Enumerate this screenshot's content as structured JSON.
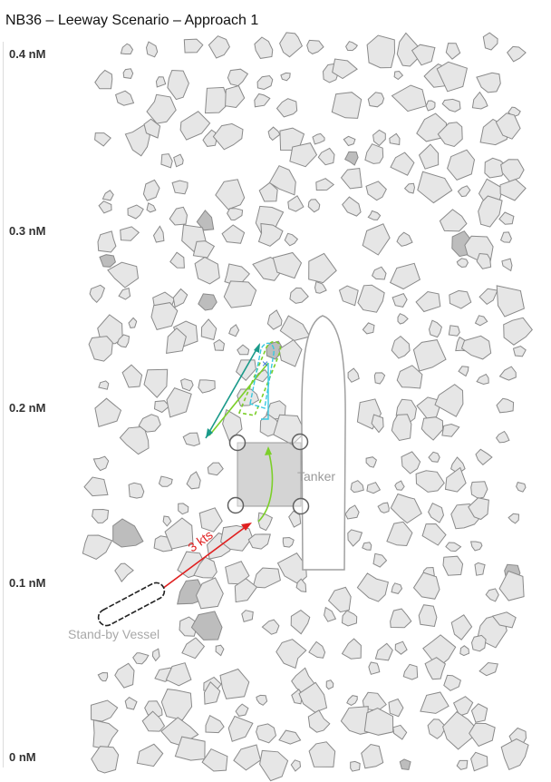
{
  "title": "NB36 – Leeway Scenario – Approach 1",
  "y_axis": {
    "unit": "nM",
    "ticks": [
      "0.4 nM",
      "0.3 nM",
      "0.2 nM",
      "0.1 nM",
      "0 nM"
    ]
  },
  "labels": {
    "tanker": "Tanker",
    "standby_vessel": "Stand-by Vessel",
    "drift_speed": "3 kts"
  },
  "colors": {
    "ice_fill": "#e6e6e6",
    "ice_stroke": "#8a8a8a",
    "ice_dark": "#bdbdbd",
    "drift_arrow": "#e02020",
    "approach_green": "#7ccf2a",
    "approach_cyan": "#38c8e0",
    "approach_teal": "#1a9a8a",
    "approach_blue": "#2a6ad0"
  }
}
